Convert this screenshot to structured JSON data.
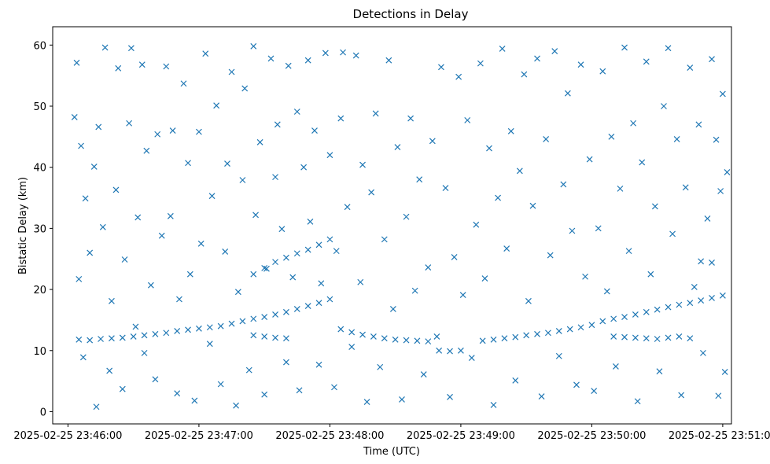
{
  "chart_data": {
    "type": "scatter",
    "title": "Detections in Delay",
    "xlabel": "Time (UTC)",
    "ylabel": "Bistatic Delay (km)",
    "xticks": [
      "2025-02-25 23:46:00",
      "2025-02-25 23:47:00",
      "2025-02-25 23:48:00",
      "2025-02-25 23:49:00",
      "2025-02-25 23:50:00",
      "2025-02-25 23:51:00"
    ],
    "yticks": [
      "0",
      "10",
      "20",
      "30",
      "40",
      "50",
      "60"
    ],
    "xlim": [
      "2025-02-25 23:45:53",
      "2025-02-25 23:51:04"
    ],
    "ylim": [
      -2,
      63
    ],
    "grid": false,
    "legend": "none",
    "marker": "x",
    "color": "#1f77b4",
    "series": [
      {
        "points": [
          [
            "23:46:05",
            11.8
          ],
          [
            "23:46:10",
            11.7
          ],
          [
            "23:46:15",
            11.9
          ],
          [
            "23:46:20",
            12.0
          ],
          [
            "23:46:25",
            12.1
          ],
          [
            "23:46:30",
            12.3
          ],
          [
            "23:46:35",
            12.5
          ],
          [
            "23:46:40",
            12.7
          ],
          [
            "23:46:45",
            12.9
          ],
          [
            "23:46:50",
            13.2
          ],
          [
            "23:46:55",
            13.4
          ],
          [
            "23:47:00",
            13.6
          ],
          [
            "23:47:05",
            13.8
          ],
          [
            "23:47:10",
            14.0
          ],
          [
            "23:47:15",
            14.4
          ],
          [
            "23:47:20",
            14.8
          ],
          [
            "23:47:25",
            15.2
          ],
          [
            "23:47:30",
            15.5
          ],
          [
            "23:47:35",
            15.9
          ],
          [
            "23:47:40",
            16.3
          ],
          [
            "23:47:45",
            16.8
          ],
          [
            "23:47:50",
            17.3
          ],
          [
            "23:47:55",
            17.8
          ],
          [
            "23:48:00",
            18.4
          ],
          [
            "23:47:25",
            12.5
          ],
          [
            "23:47:30",
            12.3
          ],
          [
            "23:47:35",
            12.1
          ],
          [
            "23:47:40",
            12.0
          ],
          [
            "23:47:25",
            22.5
          ],
          [
            "23:47:30",
            23.5
          ],
          [
            "23:47:35",
            24.5
          ],
          [
            "23:47:40",
            25.2
          ],
          [
            "23:47:45",
            25.9
          ],
          [
            "23:47:50",
            26.5
          ],
          [
            "23:47:55",
            27.3
          ],
          [
            "23:48:00",
            28.2
          ],
          [
            "23:48:05",
            13.5
          ],
          [
            "23:48:10",
            13.0
          ],
          [
            "23:48:15",
            12.6
          ],
          [
            "23:48:20",
            12.3
          ],
          [
            "23:48:25",
            12.0
          ],
          [
            "23:48:30",
            11.8
          ],
          [
            "23:48:35",
            11.7
          ],
          [
            "23:48:40",
            11.6
          ],
          [
            "23:48:45",
            11.5
          ],
          [
            "23:48:50",
            10.0
          ],
          [
            "23:48:55",
            9.9
          ],
          [
            "23:49:00",
            10.0
          ],
          [
            "23:49:10",
            11.6
          ],
          [
            "23:49:15",
            11.8
          ],
          [
            "23:49:20",
            12.0
          ],
          [
            "23:49:25",
            12.2
          ],
          [
            "23:49:30",
            12.5
          ],
          [
            "23:49:35",
            12.7
          ],
          [
            "23:49:40",
            12.9
          ],
          [
            "23:49:45",
            13.2
          ],
          [
            "23:49:50",
            13.5
          ],
          [
            "23:49:55",
            13.8
          ],
          [
            "23:50:00",
            14.2
          ],
          [
            "23:50:05",
            14.8
          ],
          [
            "23:50:10",
            15.2
          ],
          [
            "23:50:15",
            15.5
          ],
          [
            "23:50:20",
            15.9
          ],
          [
            "23:50:25",
            16.3
          ],
          [
            "23:50:30",
            16.7
          ],
          [
            "23:50:35",
            17.1
          ],
          [
            "23:50:40",
            17.5
          ],
          [
            "23:50:45",
            17.8
          ],
          [
            "23:50:50",
            18.2
          ],
          [
            "23:50:55",
            18.6
          ],
          [
            "23:51:00",
            19.0
          ],
          [
            "23:50:10",
            12.3
          ],
          [
            "23:50:15",
            12.2
          ],
          [
            "23:50:20",
            12.1
          ],
          [
            "23:50:25",
            12.0
          ],
          [
            "23:50:30",
            11.9
          ],
          [
            "23:50:35",
            12.1
          ],
          [
            "23:50:40",
            12.3
          ],
          [
            "23:50:45",
            12.0
          ],
          [
            "23:50:50",
            24.6
          ],
          [
            "23:50:55",
            24.4
          ],
          [
            "23:46:03",
            48.2
          ],
          [
            "23:46:04",
            57.1
          ],
          [
            "23:46:05",
            21.7
          ],
          [
            "23:46:06",
            43.5
          ],
          [
            "23:46:07",
            8.9
          ],
          [
            "23:46:08",
            34.9
          ],
          [
            "23:46:10",
            26.0
          ],
          [
            "23:46:12",
            40.1
          ],
          [
            "23:46:13",
            0.8
          ],
          [
            "23:46:14",
            46.6
          ],
          [
            "23:46:16",
            30.2
          ],
          [
            "23:46:17",
            59.6
          ],
          [
            "23:46:19",
            6.7
          ],
          [
            "23:46:20",
            18.1
          ],
          [
            "23:46:22",
            36.3
          ],
          [
            "23:46:23",
            56.2
          ],
          [
            "23:46:25",
            3.7
          ],
          [
            "23:46:26",
            24.9
          ],
          [
            "23:46:28",
            47.2
          ],
          [
            "23:46:29",
            59.5
          ],
          [
            "23:46:31",
            13.9
          ],
          [
            "23:46:32",
            31.8
          ],
          [
            "23:46:34",
            56.8
          ],
          [
            "23:46:35",
            9.6
          ],
          [
            "23:46:36",
            42.7
          ],
          [
            "23:46:38",
            20.7
          ],
          [
            "23:46:40",
            5.3
          ],
          [
            "23:46:41",
            45.4
          ],
          [
            "23:46:43",
            28.8
          ],
          [
            "23:46:45",
            56.5
          ],
          [
            "23:46:47",
            32.0
          ],
          [
            "23:46:48",
            46.0
          ],
          [
            "23:46:50",
            3.0
          ],
          [
            "23:46:51",
            18.4
          ],
          [
            "23:46:53",
            53.7
          ],
          [
            "23:46:55",
            40.7
          ],
          [
            "23:46:56",
            22.5
          ],
          [
            "23:46:58",
            1.8
          ],
          [
            "23:47:00",
            45.8
          ],
          [
            "23:47:01",
            27.5
          ],
          [
            "23:47:03",
            58.6
          ],
          [
            "23:47:05",
            11.1
          ],
          [
            "23:47:06",
            35.3
          ],
          [
            "23:47:08",
            50.1
          ],
          [
            "23:47:10",
            4.5
          ],
          [
            "23:47:12",
            26.2
          ],
          [
            "23:47:13",
            40.6
          ],
          [
            "23:47:15",
            55.6
          ],
          [
            "23:47:17",
            1.0
          ],
          [
            "23:47:18",
            19.6
          ],
          [
            "23:47:20",
            37.9
          ],
          [
            "23:47:21",
            52.9
          ],
          [
            "23:47:23",
            6.8
          ],
          [
            "23:47:25",
            59.8
          ],
          [
            "23:47:26",
            32.2
          ],
          [
            "23:47:28",
            44.1
          ],
          [
            "23:47:30",
            2.8
          ],
          [
            "23:47:31",
            23.4
          ],
          [
            "23:47:33",
            57.8
          ],
          [
            "23:47:35",
            38.4
          ],
          [
            "23:47:36",
            47.0
          ],
          [
            "23:47:38",
            29.9
          ],
          [
            "23:47:40",
            8.1
          ],
          [
            "23:47:41",
            56.6
          ],
          [
            "23:47:43",
            22.0
          ],
          [
            "23:47:45",
            49.1
          ],
          [
            "23:47:46",
            3.5
          ],
          [
            "23:47:48",
            40.0
          ],
          [
            "23:47:50",
            57.5
          ],
          [
            "23:47:51",
            31.1
          ],
          [
            "23:47:53",
            46.0
          ],
          [
            "23:47:55",
            7.7
          ],
          [
            "23:47:56",
            21.0
          ],
          [
            "23:47:58",
            58.7
          ],
          [
            "23:48:00",
            42.0
          ],
          [
            "23:48:02",
            4.0
          ],
          [
            "23:48:03",
            26.3
          ],
          [
            "23:48:05",
            48.0
          ],
          [
            "23:48:06",
            58.8
          ],
          [
            "23:48:08",
            33.5
          ],
          [
            "23:48:10",
            10.6
          ],
          [
            "23:48:12",
            58.3
          ],
          [
            "23:48:14",
            21.2
          ],
          [
            "23:48:15",
            40.4
          ],
          [
            "23:48:17",
            1.6
          ],
          [
            "23:48:19",
            35.9
          ],
          [
            "23:48:21",
            48.8
          ],
          [
            "23:48:23",
            7.3
          ],
          [
            "23:48:25",
            28.2
          ],
          [
            "23:48:27",
            57.5
          ],
          [
            "23:48:29",
            16.8
          ],
          [
            "23:48:31",
            43.3
          ],
          [
            "23:48:33",
            2.0
          ],
          [
            "23:48:35",
            31.9
          ],
          [
            "23:48:37",
            48.0
          ],
          [
            "23:48:39",
            19.8
          ],
          [
            "23:48:41",
            38.0
          ],
          [
            "23:48:43",
            6.1
          ],
          [
            "23:48:45",
            23.6
          ],
          [
            "23:48:47",
            44.3
          ],
          [
            "23:48:49",
            12.3
          ],
          [
            "23:48:51",
            56.4
          ],
          [
            "23:48:53",
            36.6
          ],
          [
            "23:48:55",
            2.4
          ],
          [
            "23:48:57",
            25.3
          ],
          [
            "23:48:59",
            54.8
          ],
          [
            "23:49:01",
            19.1
          ],
          [
            "23:49:03",
            47.7
          ],
          [
            "23:49:05",
            8.8
          ],
          [
            "23:49:07",
            30.6
          ],
          [
            "23:49:09",
            57.0
          ],
          [
            "23:49:11",
            21.8
          ],
          [
            "23:49:13",
            43.1
          ],
          [
            "23:49:15",
            1.1
          ],
          [
            "23:49:17",
            35.0
          ],
          [
            "23:49:19",
            59.4
          ],
          [
            "23:49:21",
            26.7
          ],
          [
            "23:49:23",
            45.9
          ],
          [
            "23:49:25",
            5.1
          ],
          [
            "23:49:27",
            39.4
          ],
          [
            "23:49:29",
            55.2
          ],
          [
            "23:49:31",
            18.1
          ],
          [
            "23:49:33",
            33.7
          ],
          [
            "23:49:35",
            57.8
          ],
          [
            "23:49:37",
            2.5
          ],
          [
            "23:49:39",
            44.6
          ],
          [
            "23:49:41",
            25.6
          ],
          [
            "23:49:43",
            59.0
          ],
          [
            "23:49:45",
            9.1
          ],
          [
            "23:49:47",
            37.2
          ],
          [
            "23:49:49",
            52.1
          ],
          [
            "23:49:51",
            29.6
          ],
          [
            "23:49:53",
            4.4
          ],
          [
            "23:49:55",
            56.8
          ],
          [
            "23:49:57",
            22.1
          ],
          [
            "23:49:59",
            41.3
          ],
          [
            "23:50:01",
            3.4
          ],
          [
            "23:50:03",
            30.0
          ],
          [
            "23:50:05",
            55.7
          ],
          [
            "23:50:07",
            19.7
          ],
          [
            "23:50:09",
            45.0
          ],
          [
            "23:50:11",
            7.4
          ],
          [
            "23:50:13",
            36.5
          ],
          [
            "23:50:15",
            59.6
          ],
          [
            "23:50:17",
            26.3
          ],
          [
            "23:50:19",
            47.2
          ],
          [
            "23:50:21",
            1.7
          ],
          [
            "23:50:23",
            40.8
          ],
          [
            "23:50:25",
            57.3
          ],
          [
            "23:50:27",
            22.5
          ],
          [
            "23:50:29",
            33.6
          ],
          [
            "23:50:31",
            6.6
          ],
          [
            "23:50:33",
            50.0
          ],
          [
            "23:50:35",
            59.5
          ],
          [
            "23:50:37",
            29.1
          ],
          [
            "23:50:39",
            44.6
          ],
          [
            "23:50:41",
            2.7
          ],
          [
            "23:50:43",
            36.7
          ],
          [
            "23:50:45",
            56.3
          ],
          [
            "23:50:47",
            20.4
          ],
          [
            "23:50:49",
            47.0
          ],
          [
            "23:50:51",
            9.6
          ],
          [
            "23:50:53",
            31.6
          ],
          [
            "23:50:55",
            57.7
          ],
          [
            "23:50:57",
            44.5
          ],
          [
            "23:50:58",
            2.6
          ],
          [
            "23:50:59",
            36.1
          ],
          [
            "23:51:00",
            52.0
          ],
          [
            "23:51:01",
            6.5
          ],
          [
            "23:51:02",
            39.2
          ]
        ]
      }
    ]
  }
}
